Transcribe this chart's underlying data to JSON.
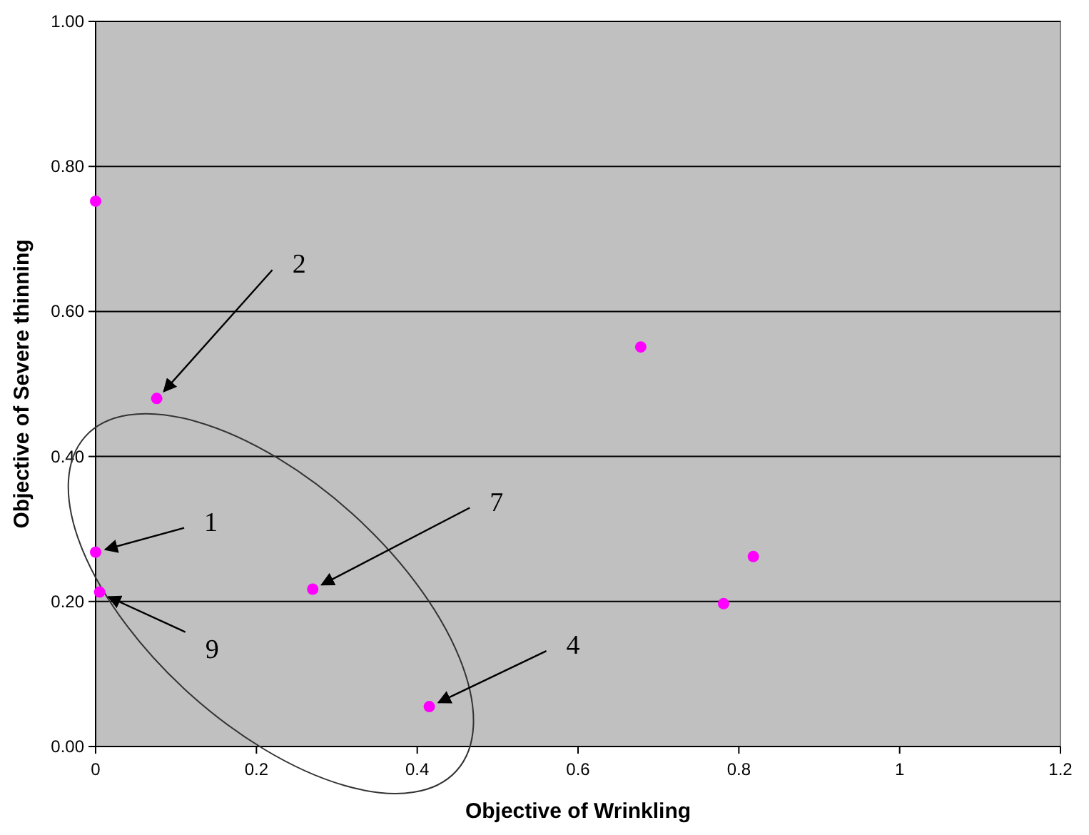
{
  "chart_data": {
    "type": "scatter",
    "xlabel": "Objective of Wrinkling",
    "ylabel": "Objective of Severe thinning",
    "x": [
      0,
      0.076,
      0.678,
      0,
      0.005,
      0.27,
      0.415,
      0.818,
      0.781
    ],
    "series": [
      {
        "color": "#ff00ff",
        "values": [
          0.752,
          0.48,
          0.551,
          0.268,
          0.213,
          0.217,
          0.055,
          0.262,
          0.197
        ]
      }
    ],
    "xlim": [
      0,
      1.2
    ],
    "xticks": [
      0,
      0.2,
      0.4,
      0.6,
      0.8,
      1,
      1.2
    ],
    "ylim": [
      0,
      1
    ],
    "yticks": [
      {
        "value": 0,
        "label": "0.00"
      },
      {
        "value": 0.2,
        "label": "0.20"
      },
      {
        "value": 0.4,
        "label": "0.40"
      },
      {
        "value": 0.6,
        "label": "0.60"
      },
      {
        "value": 0.8,
        "label": "0.80"
      },
      {
        "value": 1,
        "label": "1.00"
      }
    ],
    "grid": "y",
    "marker": "circle",
    "annotations": [
      {
        "text": "2",
        "x": 0.076,
        "y": 0.48
      },
      {
        "text": "1",
        "x": 0,
        "y": 0.268
      },
      {
        "text": "7",
        "x": 0.27,
        "y": 0.217
      },
      {
        "text": "9",
        "x": 0.005,
        "y": 0.213
      },
      {
        "text": "4",
        "x": 0.415,
        "y": 0.055
      }
    ]
  }
}
